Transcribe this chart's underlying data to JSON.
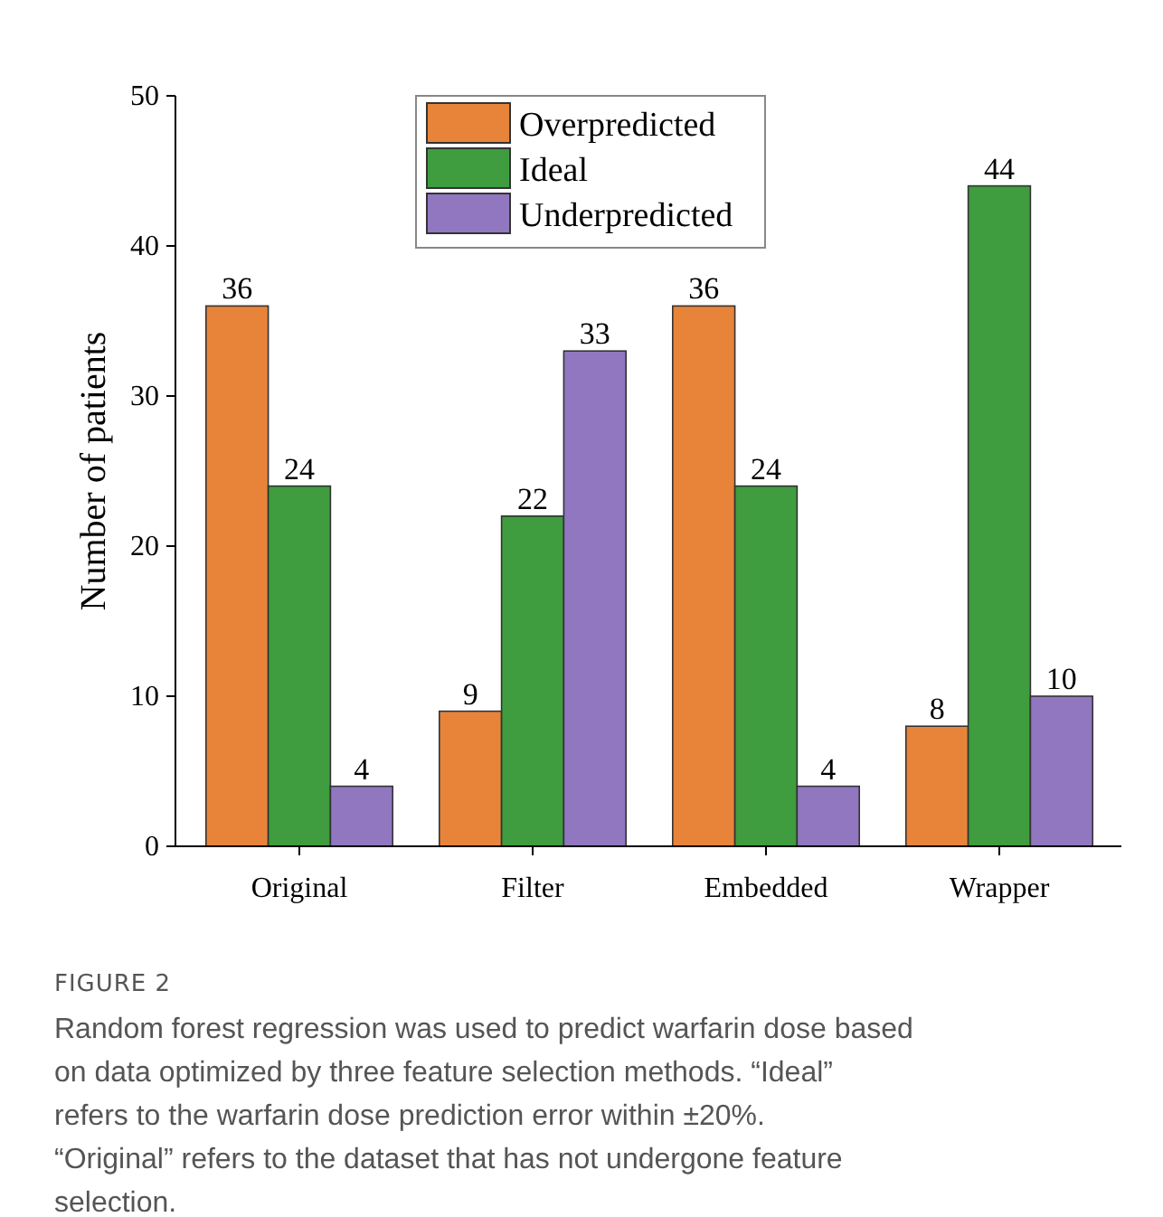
{
  "chart_data": {
    "type": "bar",
    "ylabel": "Number of patients",
    "categories": [
      "Original",
      "Filter",
      "Embedded",
      "Wrapper"
    ],
    "series": [
      {
        "name": "Overpredicted",
        "color": "#e8843a",
        "values": [
          36,
          9,
          36,
          8
        ]
      },
      {
        "name": "Ideal",
        "color": "#3f9c3f",
        "values": [
          24,
          22,
          24,
          44
        ]
      },
      {
        "name": "Underpredicted",
        "color": "#9077c0",
        "values": [
          4,
          33,
          4,
          10
        ]
      }
    ],
    "ylim": [
      0,
      50
    ],
    "yticks": [
      0,
      10,
      20,
      30,
      40,
      50
    ],
    "data_labels": true,
    "legend": "top",
    "grid": false,
    "annotations": [
      "FIGURE 2",
      "Random forest regression was used to predict warfarin dose based on data optimized by three feature selection methods. “Ideal” refers to the warfarin dose prediction error within ±20%. “Original” refers to the dataset that has not undergone feature selection."
    ]
  }
}
